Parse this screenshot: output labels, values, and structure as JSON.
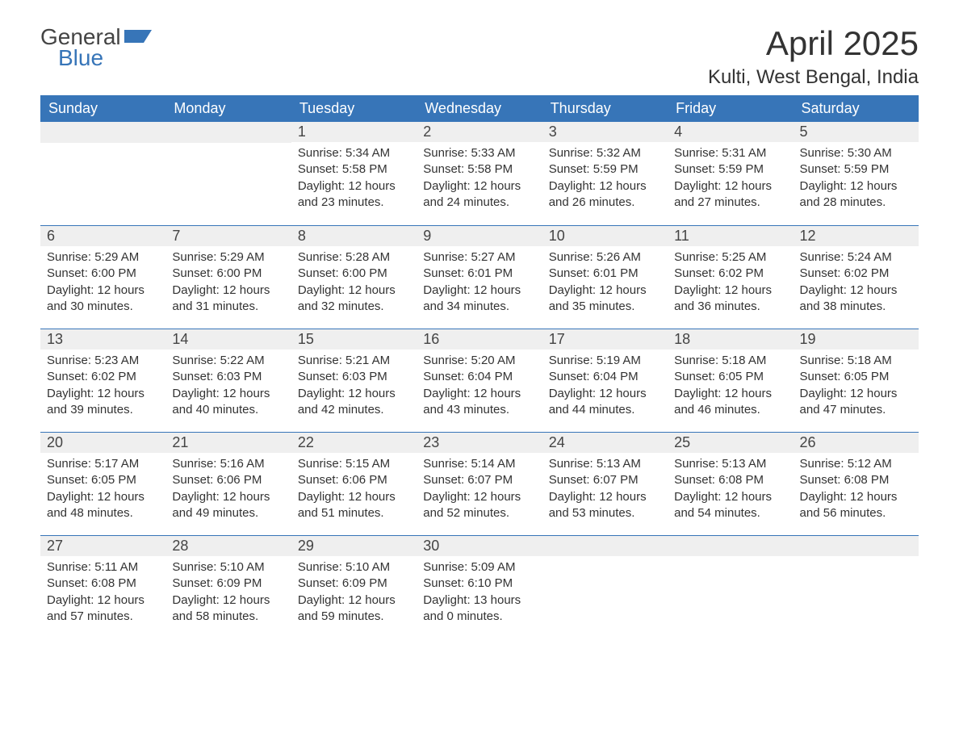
{
  "logo": {
    "text_top": "General",
    "text_bottom": "Blue"
  },
  "title": "April 2025",
  "location": "Kulti, West Bengal, India",
  "colors": {
    "header_bg": "#3775b8",
    "header_text": "#ffffff",
    "daynum_bg": "#efefef",
    "row_border": "#3775b8",
    "body_text": "#333333",
    "page_bg": "#ffffff"
  },
  "day_headers": [
    "Sunday",
    "Monday",
    "Tuesday",
    "Wednesday",
    "Thursday",
    "Friday",
    "Saturday"
  ],
  "weeks": [
    [
      null,
      null,
      {
        "n": "1",
        "sr": "Sunrise: 5:34 AM",
        "ss": "Sunset: 5:58 PM",
        "d1": "Daylight: 12 hours",
        "d2": "and 23 minutes."
      },
      {
        "n": "2",
        "sr": "Sunrise: 5:33 AM",
        "ss": "Sunset: 5:58 PM",
        "d1": "Daylight: 12 hours",
        "d2": "and 24 minutes."
      },
      {
        "n": "3",
        "sr": "Sunrise: 5:32 AM",
        "ss": "Sunset: 5:59 PM",
        "d1": "Daylight: 12 hours",
        "d2": "and 26 minutes."
      },
      {
        "n": "4",
        "sr": "Sunrise: 5:31 AM",
        "ss": "Sunset: 5:59 PM",
        "d1": "Daylight: 12 hours",
        "d2": "and 27 minutes."
      },
      {
        "n": "5",
        "sr": "Sunrise: 5:30 AM",
        "ss": "Sunset: 5:59 PM",
        "d1": "Daylight: 12 hours",
        "d2": "and 28 minutes."
      }
    ],
    [
      {
        "n": "6",
        "sr": "Sunrise: 5:29 AM",
        "ss": "Sunset: 6:00 PM",
        "d1": "Daylight: 12 hours",
        "d2": "and 30 minutes."
      },
      {
        "n": "7",
        "sr": "Sunrise: 5:29 AM",
        "ss": "Sunset: 6:00 PM",
        "d1": "Daylight: 12 hours",
        "d2": "and 31 minutes."
      },
      {
        "n": "8",
        "sr": "Sunrise: 5:28 AM",
        "ss": "Sunset: 6:00 PM",
        "d1": "Daylight: 12 hours",
        "d2": "and 32 minutes."
      },
      {
        "n": "9",
        "sr": "Sunrise: 5:27 AM",
        "ss": "Sunset: 6:01 PM",
        "d1": "Daylight: 12 hours",
        "d2": "and 34 minutes."
      },
      {
        "n": "10",
        "sr": "Sunrise: 5:26 AM",
        "ss": "Sunset: 6:01 PM",
        "d1": "Daylight: 12 hours",
        "d2": "and 35 minutes."
      },
      {
        "n": "11",
        "sr": "Sunrise: 5:25 AM",
        "ss": "Sunset: 6:02 PM",
        "d1": "Daylight: 12 hours",
        "d2": "and 36 minutes."
      },
      {
        "n": "12",
        "sr": "Sunrise: 5:24 AM",
        "ss": "Sunset: 6:02 PM",
        "d1": "Daylight: 12 hours",
        "d2": "and 38 minutes."
      }
    ],
    [
      {
        "n": "13",
        "sr": "Sunrise: 5:23 AM",
        "ss": "Sunset: 6:02 PM",
        "d1": "Daylight: 12 hours",
        "d2": "and 39 minutes."
      },
      {
        "n": "14",
        "sr": "Sunrise: 5:22 AM",
        "ss": "Sunset: 6:03 PM",
        "d1": "Daylight: 12 hours",
        "d2": "and 40 minutes."
      },
      {
        "n": "15",
        "sr": "Sunrise: 5:21 AM",
        "ss": "Sunset: 6:03 PM",
        "d1": "Daylight: 12 hours",
        "d2": "and 42 minutes."
      },
      {
        "n": "16",
        "sr": "Sunrise: 5:20 AM",
        "ss": "Sunset: 6:04 PM",
        "d1": "Daylight: 12 hours",
        "d2": "and 43 minutes."
      },
      {
        "n": "17",
        "sr": "Sunrise: 5:19 AM",
        "ss": "Sunset: 6:04 PM",
        "d1": "Daylight: 12 hours",
        "d2": "and 44 minutes."
      },
      {
        "n": "18",
        "sr": "Sunrise: 5:18 AM",
        "ss": "Sunset: 6:05 PM",
        "d1": "Daylight: 12 hours",
        "d2": "and 46 minutes."
      },
      {
        "n": "19",
        "sr": "Sunrise: 5:18 AM",
        "ss": "Sunset: 6:05 PM",
        "d1": "Daylight: 12 hours",
        "d2": "and 47 minutes."
      }
    ],
    [
      {
        "n": "20",
        "sr": "Sunrise: 5:17 AM",
        "ss": "Sunset: 6:05 PM",
        "d1": "Daylight: 12 hours",
        "d2": "and 48 minutes."
      },
      {
        "n": "21",
        "sr": "Sunrise: 5:16 AM",
        "ss": "Sunset: 6:06 PM",
        "d1": "Daylight: 12 hours",
        "d2": "and 49 minutes."
      },
      {
        "n": "22",
        "sr": "Sunrise: 5:15 AM",
        "ss": "Sunset: 6:06 PM",
        "d1": "Daylight: 12 hours",
        "d2": "and 51 minutes."
      },
      {
        "n": "23",
        "sr": "Sunrise: 5:14 AM",
        "ss": "Sunset: 6:07 PM",
        "d1": "Daylight: 12 hours",
        "d2": "and 52 minutes."
      },
      {
        "n": "24",
        "sr": "Sunrise: 5:13 AM",
        "ss": "Sunset: 6:07 PM",
        "d1": "Daylight: 12 hours",
        "d2": "and 53 minutes."
      },
      {
        "n": "25",
        "sr": "Sunrise: 5:13 AM",
        "ss": "Sunset: 6:08 PM",
        "d1": "Daylight: 12 hours",
        "d2": "and 54 minutes."
      },
      {
        "n": "26",
        "sr": "Sunrise: 5:12 AM",
        "ss": "Sunset: 6:08 PM",
        "d1": "Daylight: 12 hours",
        "d2": "and 56 minutes."
      }
    ],
    [
      {
        "n": "27",
        "sr": "Sunrise: 5:11 AM",
        "ss": "Sunset: 6:08 PM",
        "d1": "Daylight: 12 hours",
        "d2": "and 57 minutes."
      },
      {
        "n": "28",
        "sr": "Sunrise: 5:10 AM",
        "ss": "Sunset: 6:09 PM",
        "d1": "Daylight: 12 hours",
        "d2": "and 58 minutes."
      },
      {
        "n": "29",
        "sr": "Sunrise: 5:10 AM",
        "ss": "Sunset: 6:09 PM",
        "d1": "Daylight: 12 hours",
        "d2": "and 59 minutes."
      },
      {
        "n": "30",
        "sr": "Sunrise: 5:09 AM",
        "ss": "Sunset: 6:10 PM",
        "d1": "Daylight: 13 hours",
        "d2": "and 0 minutes."
      },
      null,
      null,
      null
    ]
  ]
}
